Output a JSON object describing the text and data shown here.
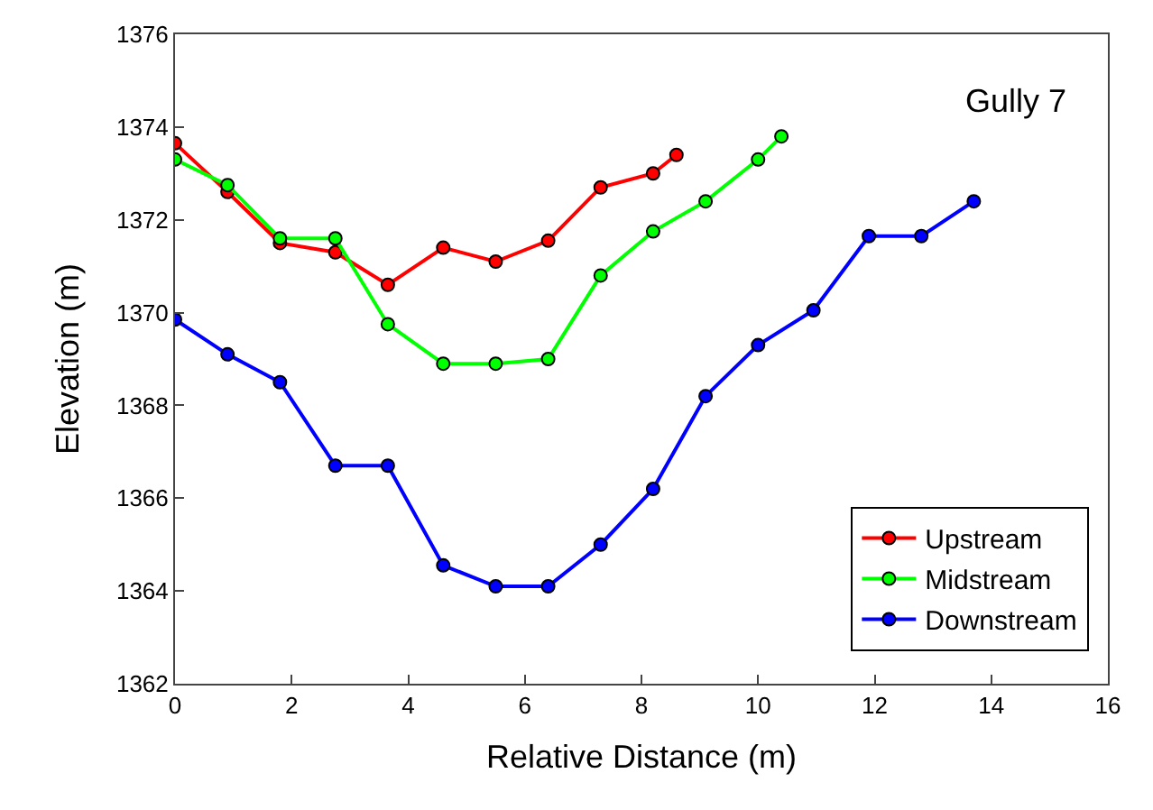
{
  "chart_data": {
    "type": "line",
    "xlabel": "Relative Distance (m)",
    "ylabel": "Elevation (m)",
    "annotations": [
      "Gully 7"
    ],
    "xlim": [
      0,
      16
    ],
    "xticks": [
      0,
      2,
      4,
      6,
      8,
      10,
      12,
      14,
      16
    ],
    "ylim": [
      1362,
      1376
    ],
    "yticks": [
      1362,
      1364,
      1366,
      1368,
      1370,
      1372,
      1374,
      1376
    ],
    "legend": "bottom right",
    "marker": "circle",
    "line_style": "solid",
    "series": [
      {
        "name": "Upstream",
        "color": "#ff0000",
        "x": [
          0,
          0.9,
          1.8,
          2.75,
          3.65,
          4.6,
          5.5,
          6.4,
          7.3,
          8.2,
          8.6
        ],
        "values": [
          1373.65,
          1372.6,
          1371.5,
          1371.3,
          1370.6,
          1371.4,
          1371.1,
          1371.55,
          1372.7,
          1373.0,
          1373.4
        ]
      },
      {
        "name": "Midstream",
        "color": "#00ff00",
        "x": [
          0,
          0.9,
          1.8,
          2.75,
          3.65,
          4.6,
          5.5,
          6.4,
          7.3,
          8.2,
          9.1,
          10.0,
          10.4
        ],
        "values": [
          1373.3,
          1372.75,
          1371.6,
          1371.6,
          1369.75,
          1368.9,
          1368.9,
          1369.0,
          1370.8,
          1371.75,
          1372.4,
          1373.3,
          1373.8
        ]
      },
      {
        "name": "Downstream",
        "color": "#0000ff",
        "x": [
          0,
          0.9,
          1.8,
          2.75,
          3.65,
          4.6,
          5.5,
          6.4,
          7.3,
          8.2,
          9.1,
          10.0,
          10.95,
          11.9,
          12.8,
          13.7
        ],
        "values": [
          1369.85,
          1369.1,
          1368.5,
          1366.7,
          1366.7,
          1364.55,
          1364.1,
          1364.1,
          1365.0,
          1366.2,
          1368.2,
          1369.3,
          1370.05,
          1371.65,
          1371.65,
          1372.4
        ]
      }
    ]
  }
}
